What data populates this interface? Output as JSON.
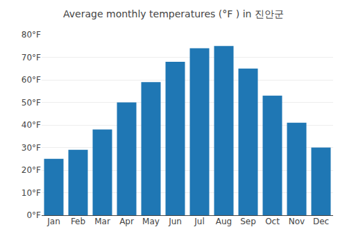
{
  "chart_data": {
    "type": "bar",
    "title": "Average monthly temperatures (°F ) in 진안군",
    "categories": [
      "Jan",
      "Feb",
      "Mar",
      "Apr",
      "May",
      "Jun",
      "Jul",
      "Aug",
      "Sep",
      "Oct",
      "Nov",
      "Dec"
    ],
    "values": [
      25,
      29,
      38,
      50,
      59,
      68,
      74,
      75,
      65,
      53,
      41,
      30
    ],
    "ylim": [
      0,
      80
    ],
    "yticks": [
      {
        "value": 0,
        "label": "0°F"
      },
      {
        "value": 10,
        "label": "10°F"
      },
      {
        "value": 20,
        "label": "20°F"
      },
      {
        "value": 30,
        "label": "30°F"
      },
      {
        "value": 40,
        "label": "40°F"
      },
      {
        "value": 50,
        "label": "50°F"
      },
      {
        "value": 60,
        "label": "60°F"
      },
      {
        "value": 70,
        "label": "70°F"
      },
      {
        "value": 80,
        "label": "80°F"
      }
    ],
    "grid": true
  }
}
